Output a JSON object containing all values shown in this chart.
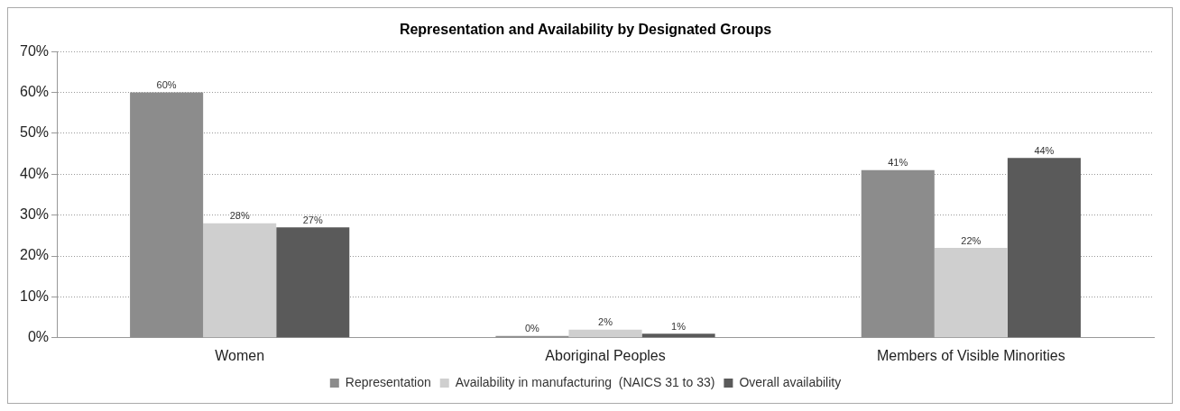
{
  "chart_data": {
    "type": "bar",
    "title": "Representation and Availability by Designated Groups",
    "categories": [
      "Women",
      "Aboriginal Peoples",
      "Members of Visible Minorities"
    ],
    "series": [
      {
        "name": "Representation",
        "color": "#8c8c8c",
        "values": [
          60,
          0,
          41
        ],
        "value_labels": [
          "60%",
          "0%",
          "41%"
        ]
      },
      {
        "name": "Availability in manufacturing  (NAICS 31 to 33)",
        "color": "#cfcfcf",
        "values": [
          28,
          2,
          22
        ],
        "value_labels": [
          "28%",
          "2%",
          "22%"
        ]
      },
      {
        "name": "Overall availability",
        "color": "#5a5a5a",
        "values": [
          27,
          1,
          44
        ],
        "value_labels": [
          "27%",
          "1%",
          "44%"
        ]
      }
    ],
    "ylim": [
      0,
      70
    ],
    "yticks": [
      {
        "value": 0,
        "label": "0%"
      },
      {
        "value": 10,
        "label": "10%"
      },
      {
        "value": 20,
        "label": "20%"
      },
      {
        "value": 30,
        "label": "30%"
      },
      {
        "value": 40,
        "label": "40%"
      },
      {
        "value": 50,
        "label": "50%"
      },
      {
        "value": 60,
        "label": "60%"
      },
      {
        "value": 70,
        "label": "70%"
      }
    ],
    "grid": "y",
    "legend": "bottom"
  }
}
